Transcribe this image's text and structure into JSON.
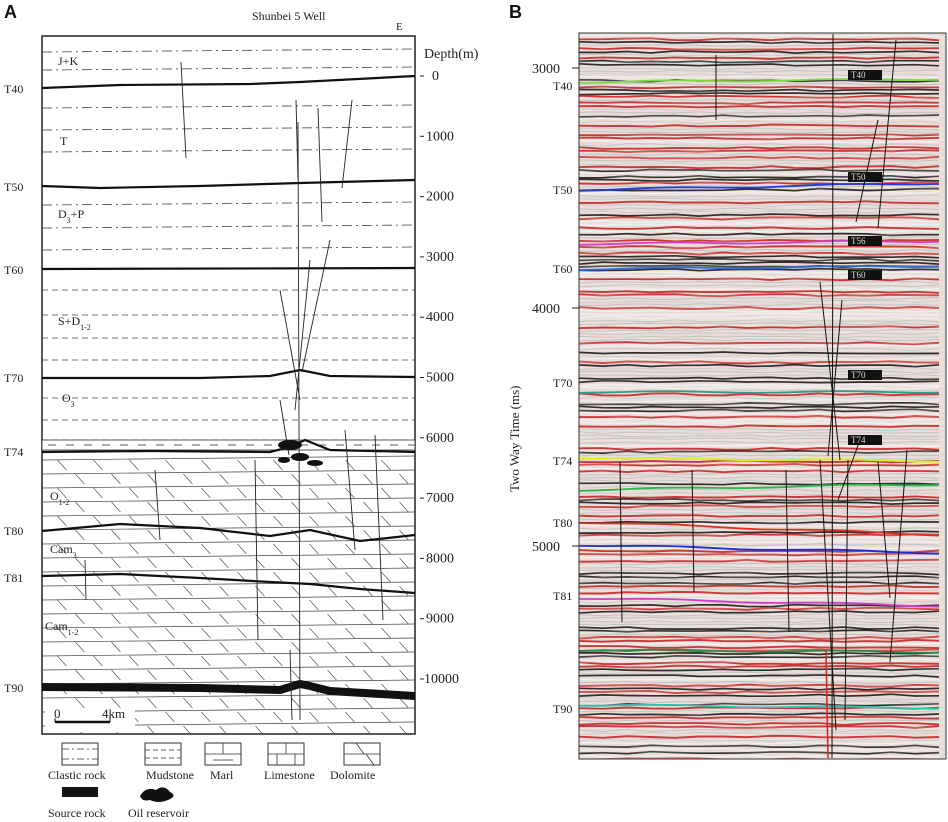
{
  "panel_a": {
    "letter": "A",
    "well_label": "Shunbei 5 Well",
    "direction": "E",
    "depth_title": "Depth(m)",
    "depth_ticks": [
      "0",
      "1000",
      "2000",
      "3000",
      "4000",
      "5000",
      "6000",
      "7000",
      "8000",
      "9000",
      "10000"
    ],
    "horizons": [
      "T40",
      "T50",
      "T60",
      "T70",
      "T74",
      "T80",
      "T81",
      "T90"
    ],
    "units": [
      {
        "main": "J+K",
        "sub": ""
      },
      {
        "main": "T",
        "sub": ""
      },
      {
        "main": "D",
        "sub": "3",
        "rest": "+P"
      },
      {
        "main": "S+D",
        "sub": "1-2"
      },
      {
        "main": "O",
        "sub": "3"
      },
      {
        "main": "O",
        "sub": "1-2"
      },
      {
        "main": "Cam",
        "sub": "3"
      },
      {
        "main": "Cam",
        "sub": "1-2"
      }
    ],
    "scale_bar": {
      "start": "0",
      "end": "4km"
    }
  },
  "panel_b": {
    "letter": "B",
    "axis_title": "Two Way Time (ms)",
    "time_ticks": [
      "3000",
      "4000",
      "5000"
    ],
    "horizons": [
      "T40",
      "T50",
      "T60",
      "T70",
      "T74",
      "T80",
      "T81",
      "T90"
    ],
    "horizon_tags": [
      "T40",
      "T50",
      "T56",
      "T60",
      "T70",
      "T74"
    ],
    "horizon_colors": {
      "T40": "#7cd93f",
      "T50": "#1f3fd6",
      "T56": "#d63fd0",
      "T60": "#3070e0",
      "T70": "#3a9a8a",
      "T74": "#d8f020",
      "T74b": "#2ab84a",
      "T80": "#e03020",
      "T80b": "#1a2fd8",
      "T81": "#d040d0",
      "T81b": "#2a8a4a",
      "T90": "#35c2b0"
    }
  },
  "legend": [
    {
      "key": "clastic",
      "label": "Clastic rock"
    },
    {
      "key": "mudstone",
      "label": "Mudstone"
    },
    {
      "key": "marl",
      "label": "Marl"
    },
    {
      "key": "limestone",
      "label": "Limestone"
    },
    {
      "key": "dolomite",
      "label": "Dolomite"
    },
    {
      "key": "source",
      "label": "Source rock"
    },
    {
      "key": "oil",
      "label": "Oil reservoir"
    }
  ]
}
